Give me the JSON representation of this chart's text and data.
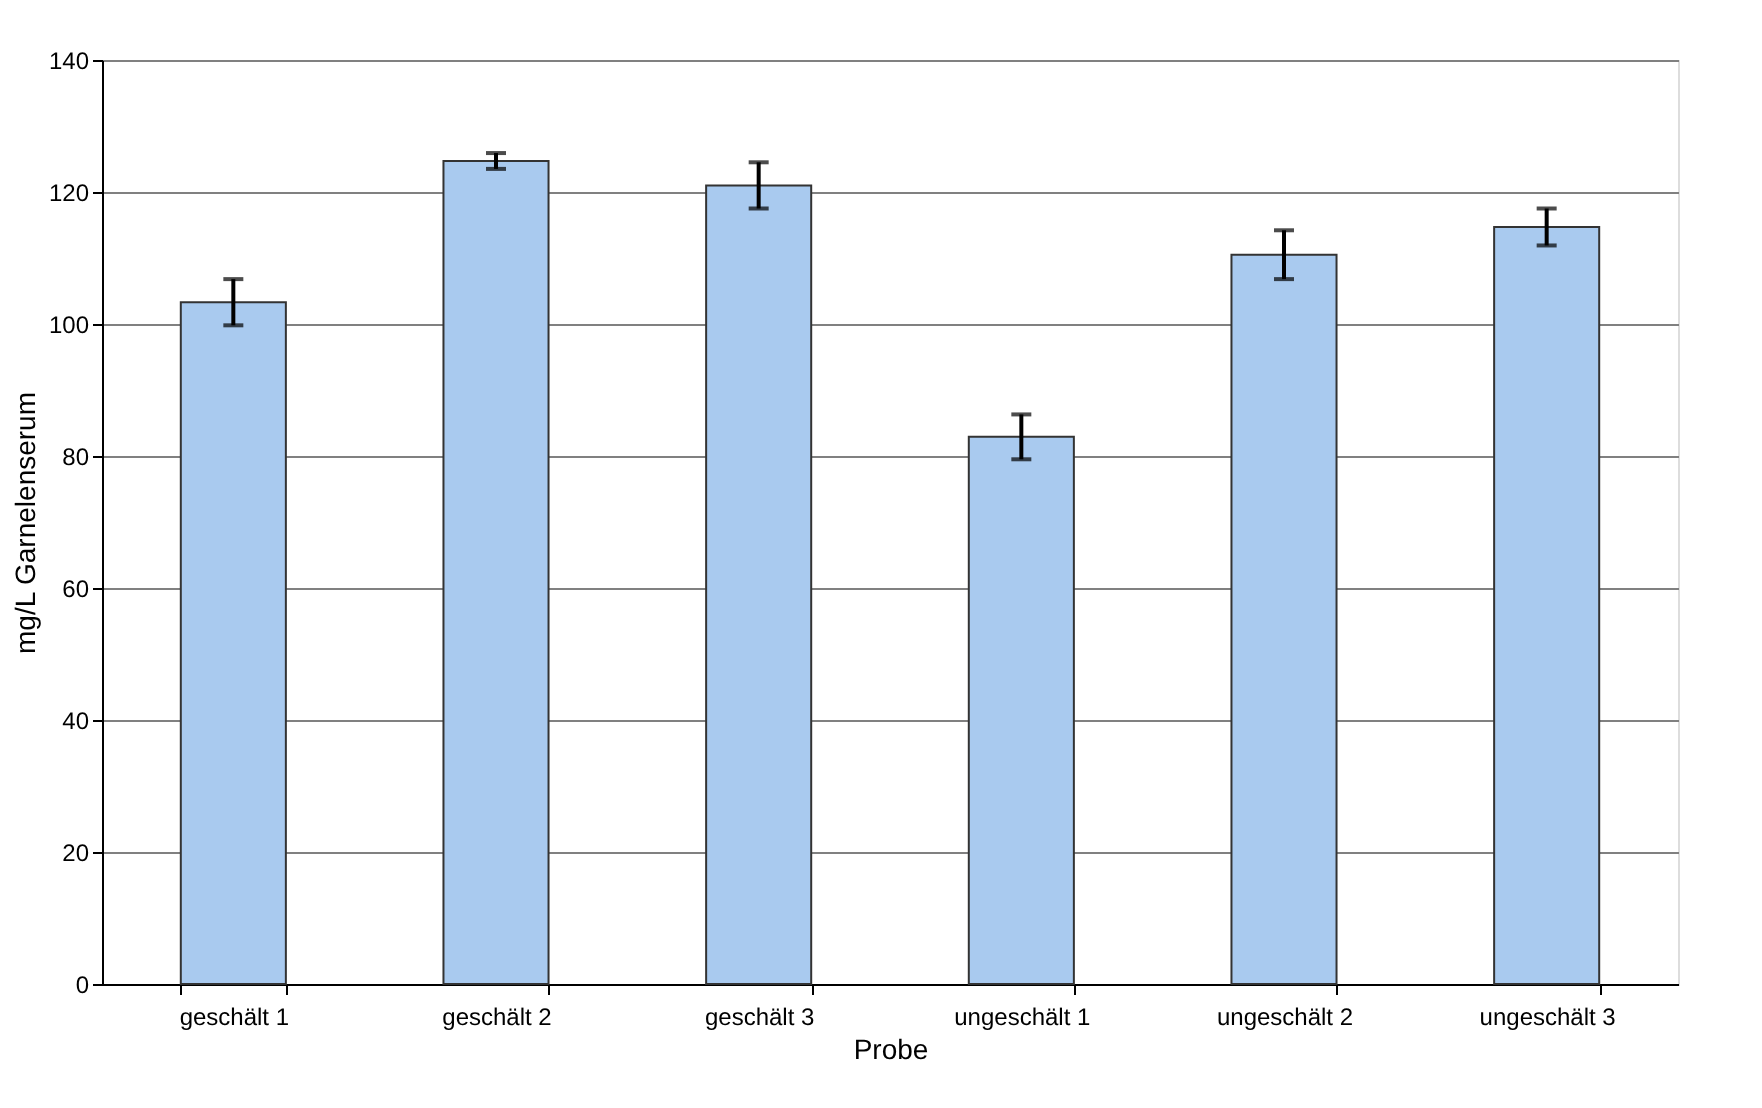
{
  "chart_data": {
    "type": "bar",
    "xlabel": "Probe",
    "ylabel": "mg/L Garnelenserum",
    "categories": [
      "geschält 1",
      "geschält 2",
      "geschält 3",
      "ungeschält 1",
      "ungeschält 2",
      "ungeschält 3"
    ],
    "values": [
      103.3,
      124.7,
      121.0,
      82.9,
      110.5,
      114.7
    ],
    "errors": [
      3.5,
      1.2,
      3.5,
      3.4,
      3.7,
      2.8
    ],
    "color": "#a9caef",
    "ylim": [
      0,
      140
    ],
    "yticks": [
      0,
      20,
      40,
      60,
      80,
      100,
      120,
      140
    ],
    "grid": "y"
  }
}
